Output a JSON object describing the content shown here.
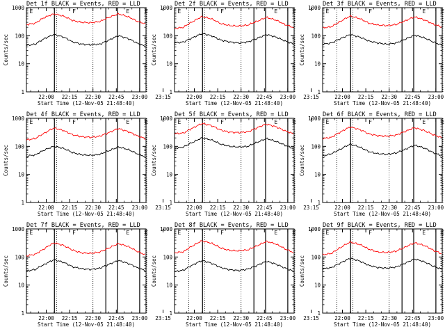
{
  "figure": {
    "background": "#ffffff",
    "events_color": "#000000",
    "lld_color": "#ff0000"
  },
  "chart_data": [
    {
      "type": "line",
      "title": "Det 1f BLACK = Events, RED = LLD",
      "xlabel": "Start Time (12-Nov-05 21:48:40)",
      "ylabel": "Counts/sec",
      "yscale": "log",
      "ylim": [
        1,
        1000
      ],
      "x_ticks": [
        "22:00",
        "22:15",
        "22:30",
        "22:45",
        "23:00",
        "23:15"
      ],
      "y_ticks": [
        "1",
        "10",
        "100",
        "1000"
      ],
      "segment_labels": [
        "E",
        "F",
        "E",
        "E"
      ],
      "series": [
        {
          "name": "Events",
          "color": "#000000",
          "values": [
            45,
            50,
            80,
            110,
            90,
            60,
            50,
            48,
            50,
            70,
            100,
            80,
            55,
            40
          ]
        },
        {
          "name": "LLD",
          "color": "#ff0000",
          "values": [
            250,
            280,
            450,
            600,
            500,
            350,
            300,
            290,
            320,
            450,
            600,
            480,
            330,
            260
          ]
        }
      ]
    },
    {
      "type": "line",
      "title": "Det 2f BLACK = Events, RED = LLD",
      "xlabel": "Start Time (12-Nov-05 21:48:40)",
      "ylabel": "Counts/sec",
      "yscale": "log",
      "ylim": [
        1,
        1000
      ],
      "x_ticks": [
        "22:00",
        "22:15",
        "22:30",
        "22:45",
        "23:00",
        "23:15"
      ],
      "y_ticks": [
        "1",
        "10",
        "100",
        "1000"
      ],
      "segment_labels": [
        "E",
        "F",
        "E",
        "E"
      ],
      "series": [
        {
          "name": "Events",
          "color": "#000000",
          "values": [
            55,
            60,
            85,
            120,
            100,
            70,
            60,
            55,
            60,
            80,
            110,
            90,
            65,
            50
          ]
        },
        {
          "name": "LLD",
          "color": "#ff0000",
          "values": [
            180,
            200,
            320,
            480,
            400,
            270,
            230,
            220,
            240,
            330,
            450,
            360,
            250,
            190
          ]
        }
      ]
    },
    {
      "type": "line",
      "title": "Det 3f BLACK = Events, RED = LLD",
      "xlabel": "Start Time (12-Nov-05 21:48:40)",
      "ylabel": "Counts/sec",
      "yscale": "log",
      "ylim": [
        1,
        1000
      ],
      "x_ticks": [
        "22:00",
        "22:15",
        "22:30",
        "22:45",
        "23:00",
        "23:15"
      ],
      "y_ticks": [
        "1",
        "10",
        "100",
        "1000"
      ],
      "segment_labels": [
        "E",
        "F",
        "E",
        "E"
      ],
      "series": [
        {
          "name": "Events",
          "color": "#000000",
          "values": [
            50,
            55,
            80,
            110,
            90,
            65,
            55,
            50,
            55,
            75,
            105,
            85,
            60,
            45
          ]
        },
        {
          "name": "LLD",
          "color": "#ff0000",
          "values": [
            190,
            210,
            330,
            500,
            410,
            280,
            240,
            230,
            250,
            340,
            470,
            370,
            260,
            200
          ]
        }
      ]
    },
    {
      "type": "line",
      "title": "Det 4f BLACK = Events, RED = LLD",
      "xlabel": "Start Time (12-Nov-05 21:48:40)",
      "ylabel": "Counts/sec",
      "yscale": "log",
      "ylim": [
        1,
        1000
      ],
      "x_ticks": [
        "22:00",
        "22:15",
        "22:30",
        "22:45",
        "23:00",
        "23:15"
      ],
      "y_ticks": [
        "1",
        "10",
        "100",
        "1000"
      ],
      "segment_labels": [
        "E",
        "F",
        "E",
        "E"
      ],
      "series": [
        {
          "name": "Events",
          "color": "#000000",
          "values": [
            45,
            50,
            75,
            100,
            85,
            60,
            50,
            48,
            52,
            70,
            95,
            78,
            55,
            42
          ]
        },
        {
          "name": "LLD",
          "color": "#ff0000",
          "values": [
            170,
            190,
            300,
            450,
            370,
            260,
            220,
            210,
            230,
            310,
            430,
            340,
            240,
            180
          ]
        }
      ]
    },
    {
      "type": "line",
      "title": "Det 5f BLACK = Events, RED = LLD",
      "xlabel": "Start Time (12-Nov-05 21:48:40)",
      "ylabel": "Counts/sec",
      "yscale": "log",
      "ylim": [
        1,
        1000
      ],
      "x_ticks": [
        "22:00",
        "22:15",
        "22:30",
        "22:45",
        "23:00",
        "23:15"
      ],
      "y_ticks": [
        "1",
        "10",
        "100",
        "1000"
      ],
      "segment_labels": [
        "E",
        "F",
        "E",
        "E"
      ],
      "series": [
        {
          "name": "Events",
          "color": "#000000",
          "values": [
            85,
            95,
            140,
            200,
            170,
            120,
            100,
            95,
            100,
            140,
            190,
            150,
            110,
            80
          ]
        },
        {
          "name": "LLD",
          "color": "#ff0000",
          "values": [
            280,
            300,
            450,
            650,
            550,
            380,
            320,
            310,
            330,
            460,
            620,
            500,
            360,
            270
          ]
        }
      ]
    },
    {
      "type": "line",
      "title": "Det 6f BLACK = Events, RED = LLD",
      "xlabel": "Start Time (12-Nov-05 21:48:40)",
      "ylabel": "Counts/sec",
      "yscale": "log",
      "ylim": [
        1,
        1000
      ],
      "x_ticks": [
        "22:00",
        "22:15",
        "22:30",
        "22:45",
        "23:00",
        "23:15"
      ],
      "y_ticks": [
        "1",
        "10",
        "100",
        "1000"
      ],
      "segment_labels": [
        "E",
        "F",
        "E",
        "E"
      ],
      "series": [
        {
          "name": "Events",
          "color": "#000000",
          "values": [
            45,
            55,
            80,
            120,
            95,
            65,
            55,
            52,
            58,
            78,
            110,
            88,
            60,
            45
          ]
        },
        {
          "name": "LLD",
          "color": "#ff0000",
          "values": [
            190,
            210,
            330,
            490,
            400,
            280,
            240,
            230,
            250,
            340,
            460,
            370,
            260,
            200
          ]
        }
      ]
    },
    {
      "type": "line",
      "title": "Det 7f BLACK = Events, RED = LLD",
      "xlabel": "Start Time (12-Nov-05 21:48:40)",
      "ylabel": "Counts/sec",
      "yscale": "log",
      "ylim": [
        1,
        1000
      ],
      "x_ticks": [
        "22:00",
        "22:15",
        "22:30",
        "22:45",
        "23:00",
        "23:15"
      ],
      "y_ticks": [
        "1",
        "10",
        "100",
        "1000"
      ],
      "segment_labels": [
        "E",
        "F",
        "E",
        "E"
      ],
      "series": [
        {
          "name": "Events",
          "color": "#000000",
          "values": [
            32,
            36,
            55,
            80,
            65,
            45,
            38,
            36,
            40,
            55,
            75,
            60,
            42,
            32
          ]
        },
        {
          "name": "LLD",
          "color": "#ff0000",
          "values": [
            110,
            125,
            200,
            320,
            260,
            175,
            140,
            135,
            150,
            210,
            300,
            240,
            160,
            115
          ]
        }
      ]
    },
    {
      "type": "line",
      "title": "Det 8f BLACK = Events, RED = LLD",
      "xlabel": "Start Time (12-Nov-05 21:48:40)",
      "ylabel": "Counts/sec",
      "yscale": "log",
      "ylim": [
        1,
        1000
      ],
      "x_ticks": [
        "22:00",
        "22:15",
        "22:30",
        "22:45",
        "23:00",
        "23:15"
      ],
      "y_ticks": [
        "1",
        "10",
        "100",
        "1000"
      ],
      "segment_labels": [
        "E",
        "F",
        "E",
        "E"
      ],
      "series": [
        {
          "name": "Events",
          "color": "#000000",
          "values": [
            30,
            34,
            52,
            75,
            60,
            42,
            35,
            33,
            37,
            50,
            70,
            56,
            40,
            30
          ]
        },
        {
          "name": "LLD",
          "color": "#ff0000",
          "values": [
            140,
            155,
            250,
            380,
            310,
            210,
            170,
            165,
            180,
            250,
            360,
            290,
            195,
            140
          ]
        }
      ]
    },
    {
      "type": "line",
      "title": "Det 9f BLACK = Events, RED = LLD",
      "xlabel": "Start Time (12-Nov-05 21:48:40)",
      "ylabel": "Counts/sec",
      "yscale": "log",
      "ylim": [
        1,
        1000
      ],
      "x_ticks": [
        "22:00",
        "22:15",
        "22:30",
        "22:45",
        "23:00",
        "23:15"
      ],
      "y_ticks": [
        "1",
        "10",
        "100",
        "1000"
      ],
      "segment_labels": [
        "E",
        "F",
        "E",
        "E"
      ],
      "series": [
        {
          "name": "Events",
          "color": "#000000",
          "values": [
            38,
            42,
            62,
            90,
            72,
            50,
            42,
            40,
            44,
            60,
            85,
            68,
            47,
            36
          ]
        },
        {
          "name": "LLD",
          "color": "#ff0000",
          "values": [
            120,
            135,
            220,
            340,
            280,
            190,
            150,
            145,
            160,
            225,
            320,
            260,
            175,
            125
          ]
        }
      ]
    }
  ]
}
